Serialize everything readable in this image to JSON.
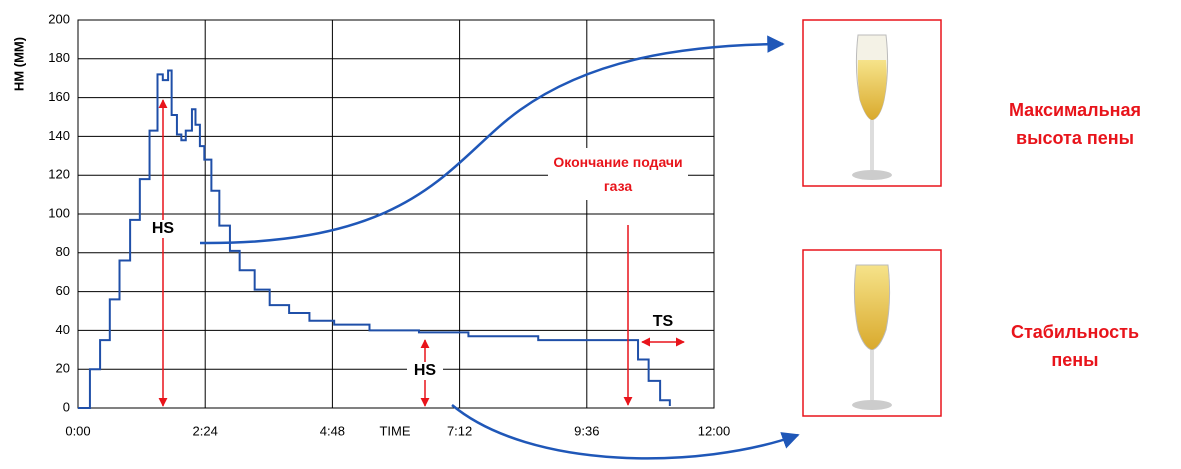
{
  "chart_data": {
    "type": "line",
    "x_label": "TIME",
    "y_label": "HM (MM)",
    "x": [
      0,
      13.5,
      25,
      36,
      47,
      59,
      70,
      81,
      90,
      96,
      102,
      106,
      112,
      117,
      122,
      129,
      133,
      138,
      143,
      151,
      160,
      172,
      183,
      200,
      217,
      239,
      262,
      290,
      330,
      386,
      442,
      521,
      583,
      621,
      634,
      646,
      659,
      670
    ],
    "series": [
      {
        "color": "#1f4fa8",
        "values": [
          0,
          20,
          35,
          56,
          76,
          97,
          118,
          143,
          172,
          169,
          174,
          151,
          141,
          138,
          143,
          154,
          146,
          135,
          128,
          112,
          94,
          81,
          71,
          61,
          53,
          49,
          45,
          43,
          40,
          39,
          37,
          35,
          35,
          35,
          25,
          14,
          4,
          1
        ]
      }
    ],
    "xlim": [
      0,
      720
    ],
    "xticks": [
      {
        "value": 0,
        "label": "0:00"
      },
      {
        "value": 144,
        "label": "2:24"
      },
      {
        "value": 288,
        "label": "4:48"
      },
      {
        "value": 432,
        "label": "7:12"
      },
      {
        "value": 576,
        "label": "9:36"
      },
      {
        "value": 720,
        "label": "12:00"
      }
    ],
    "ylim": [
      0,
      200
    ],
    "yticks": [
      0,
      20,
      40,
      60,
      80,
      100,
      120,
      140,
      160,
      180,
      200
    ],
    "grid": true,
    "annotations": [
      "HS",
      "HS",
      "TS",
      "Окончание подачи газа"
    ],
    "captions": [
      "Максимальная высота пены",
      "Стабильность пены"
    ]
  }
}
